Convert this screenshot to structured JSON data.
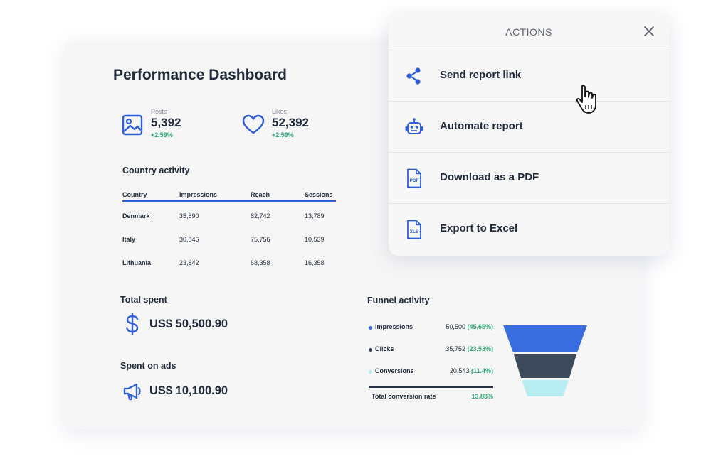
{
  "dashboard": {
    "title": "Performance Dashboard",
    "kpis": [
      {
        "label": "Posts",
        "value": "5,392",
        "change": "+2.59%",
        "icon": "image-icon"
      },
      {
        "label": "Likes",
        "value": "52,392",
        "change": "+2.59%",
        "icon": "heart-icon"
      }
    ],
    "country_activity": {
      "title": "Country activity",
      "columns": [
        "Country",
        "Impressions",
        "Reach",
        "Sessions"
      ],
      "rows": [
        [
          "Denmark",
          "35,890",
          "82,742",
          "13,789"
        ],
        [
          "Italy",
          "30,846",
          "75,756",
          "10,539"
        ],
        [
          "Lithuania",
          "23,842",
          "68,358",
          "16,358"
        ]
      ]
    },
    "total_spent": {
      "title": "Total spent",
      "amount": "US$ 50,500.90",
      "icon": "dollar-icon"
    },
    "spent_on_ads": {
      "title": "Spent on ads",
      "amount": "US$ 10,100.90",
      "icon": "megaphone-icon"
    },
    "funnel": {
      "title": "Funnel activity",
      "stages": [
        {
          "name": "Impressions",
          "value": "50,500",
          "pct": "(45.65%)",
          "color": "#3a6ee0"
        },
        {
          "name": "Clicks",
          "value": "35,752",
          "pct": "(23.53%)",
          "color": "#3d4a5c"
        },
        {
          "name": "Conversions",
          "value": "20,543",
          "pct": "(11.4%)",
          "color": "#b7ecf0"
        }
      ],
      "total_label": "Total conversion rate",
      "total_value": "13.83%"
    }
  },
  "actions": {
    "title": "ACTIONS",
    "items": [
      {
        "label": "Send report link",
        "icon": "share-icon"
      },
      {
        "label": "Automate report",
        "icon": "robot-icon"
      },
      {
        "label": "Download as a PDF",
        "icon": "pdf-file-icon"
      },
      {
        "label": "Export to Excel",
        "icon": "xls-file-icon"
      }
    ]
  },
  "colors": {
    "accent": "#2e5fd8",
    "positive": "#2aa876",
    "text": "#1f2a3b"
  }
}
